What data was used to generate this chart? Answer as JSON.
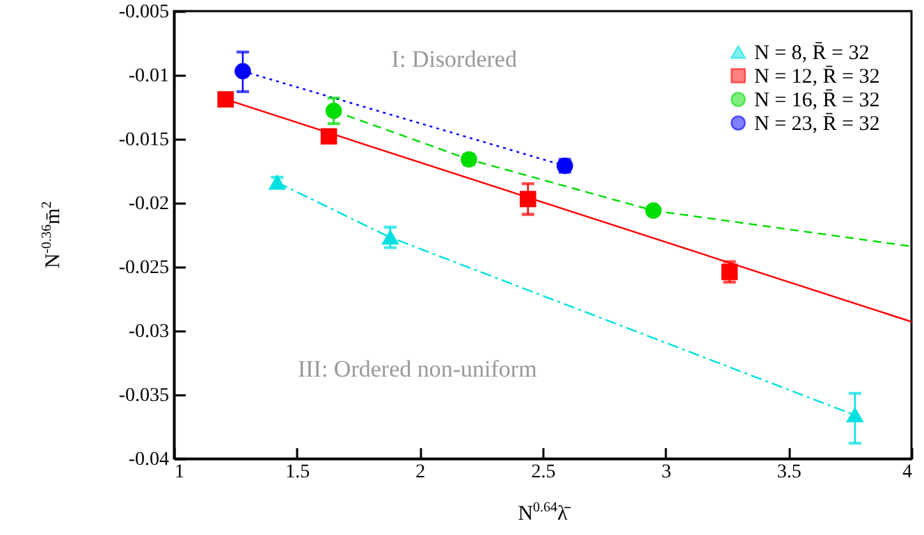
{
  "chart_data": {
    "type": "scatter",
    "xlabel": "N$^{0.64}$λ̄",
    "ylabel": "N$^{-0.36}$m̄$^{2}$",
    "xlim": [
      1,
      4
    ],
    "xticks": [
      1,
      1.5,
      2,
      2.5,
      3,
      3.5,
      4
    ],
    "ylim": [
      -0.04,
      -0.005
    ],
    "yticks": [
      -0.04,
      -0.035,
      -0.03,
      -0.025,
      -0.02,
      -0.015,
      -0.01,
      -0.005
    ],
    "legend": "top right",
    "annotations": [
      "I: Disordered",
      "III: Ordered non-uniform"
    ],
    "series": [
      {
        "name": "N = 8, R̄ = 32",
        "marker": "triangle",
        "color": "#00e0e0",
        "x": [
          1.42,
          1.88,
          3.77
        ],
        "values": [
          -0.0184,
          -0.0227,
          -0.0366
        ],
        "errors": [
          0.0004,
          0.0008,
          [
            -0.0388,
            -0.0349
          ]
        ]
      },
      {
        "name": "N = 12, R̄ = 32",
        "marker": "square",
        "color": "#ff0000",
        "x": [
          1.21,
          1.63,
          2.44,
          3.26
        ],
        "values": [
          -0.0119,
          -0.0148,
          -0.0197,
          -0.0254
        ],
        "errors": [
          0.0003,
          0.0003,
          0.0012,
          0.0008
        ]
      },
      {
        "name": "N = 16, R̄ = 32",
        "marker": "circle",
        "color": "#00dd00",
        "x": [
          1.65,
          2.2,
          2.95
        ],
        "values": [
          -0.0128,
          -0.0166,
          -0.0206
        ],
        "errors": [
          0.001,
          0.0004,
          0.0003
        ]
      },
      {
        "name": "N = 23, R̄ = 32",
        "marker": "circle",
        "color": "#0000ff",
        "x": [
          1.28,
          2.59
        ],
        "values": [
          -0.0097,
          -0.0171
        ],
        "errors": [
          [
            -0.0113,
            -0.0082
          ],
          0.0005
        ]
      },
      {
        "type": "line",
        "line_style": "dashdot",
        "color": "#00e0e0",
        "x": [
          1.42,
          1.88,
          3.77
        ],
        "values": [
          -0.0184,
          -0.0227,
          -0.0366
        ]
      },
      {
        "type": "line",
        "line_style": "solid",
        "color": "#ff0000",
        "x": [
          1.21,
          4
        ],
        "values": [
          -0.0119,
          -0.0293
        ]
      },
      {
        "type": "line",
        "line_style": "dashed",
        "color": "#00dd00",
        "x": [
          1.65,
          2.2,
          2.95,
          4
        ],
        "values": [
          -0.0128,
          -0.0166,
          -0.0206,
          -0.0234
        ]
      },
      {
        "type": "line",
        "line_style": "dotted",
        "color": "#0000ff",
        "x": [
          1.28,
          2.59
        ],
        "values": [
          -0.0097,
          -0.0171
        ]
      }
    ]
  }
}
